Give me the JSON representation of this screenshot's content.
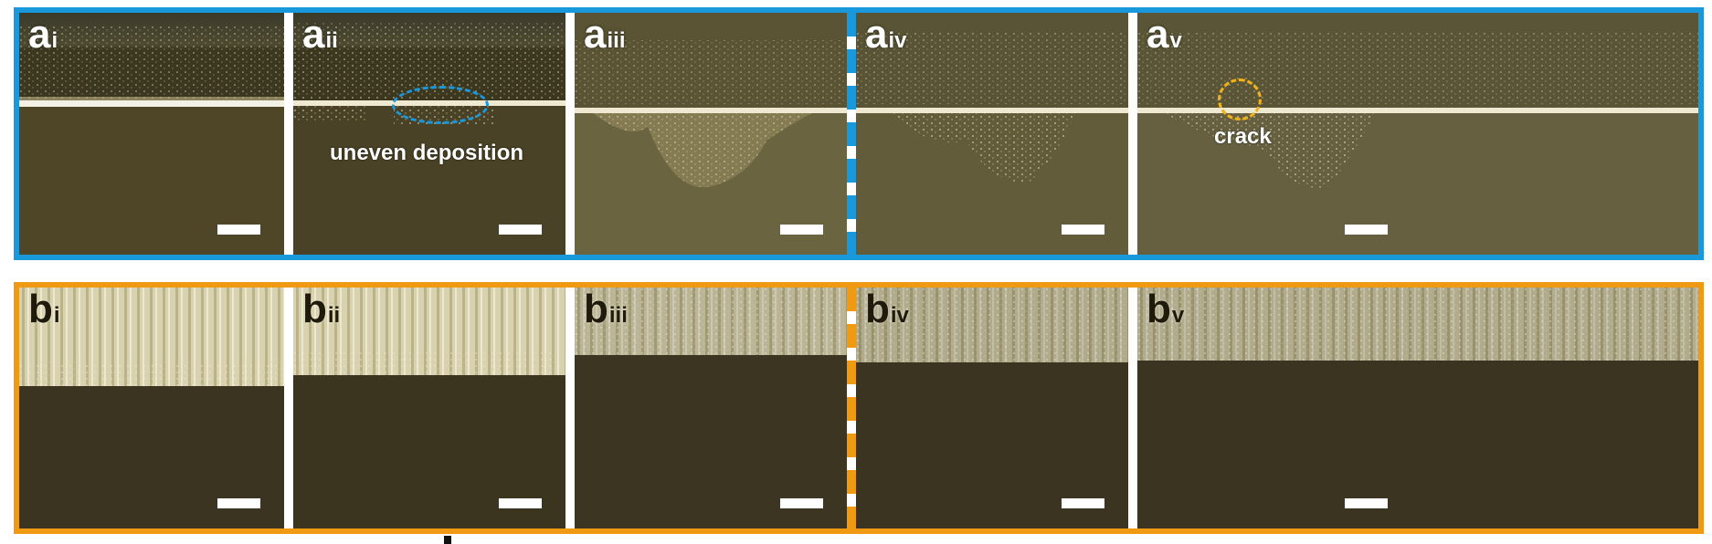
{
  "row_a": {
    "border_color": "#1a98dc",
    "panels": [
      {
        "letter": "a",
        "sub": "i"
      },
      {
        "letter": "a",
        "sub": "ii"
      },
      {
        "letter": "a",
        "sub": "iii"
      },
      {
        "letter": "a",
        "sub": "iv"
      },
      {
        "letter": "a",
        "sub": "v"
      }
    ],
    "annotations": {
      "uneven": "uneven deposition",
      "crack": "crack"
    }
  },
  "row_b": {
    "border_color": "#ef9a12",
    "panels": [
      {
        "letter": "b",
        "sub": "i"
      },
      {
        "letter": "b",
        "sub": "ii"
      },
      {
        "letter": "b",
        "sub": "iii"
      },
      {
        "letter": "b",
        "sub": "iv"
      },
      {
        "letter": "b",
        "sub": "v"
      }
    ]
  },
  "colors": {
    "ring_blue": "#1a98dc",
    "ring_orange": "#f2b21c"
  }
}
